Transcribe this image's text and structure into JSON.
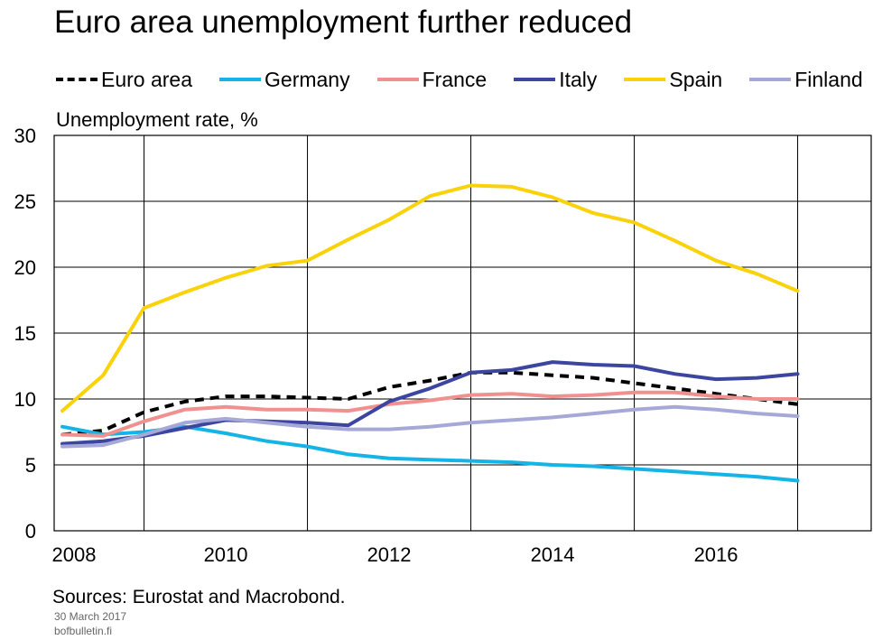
{
  "footer": {
    "sources": "Sources: Eurostat and Macrobond.",
    "date": "30 March 2017",
    "site": "bofbulletin.fi"
  },
  "chart_data": {
    "type": "line",
    "title": "Euro area unemployment further reduced",
    "ylabel": "Unemployment rate, %",
    "xlabel": "",
    "xlim": [
      2007.9,
      2017.9
    ],
    "ylim": [
      0,
      30
    ],
    "grid": true,
    "legend_position": "top",
    "x_ticks": [
      "2008",
      "2010",
      "2012",
      "2014",
      "2016"
    ],
    "y_ticks": [
      "0",
      "5",
      "10",
      "15",
      "20",
      "25",
      "30"
    ],
    "x": [
      2008.0,
      2008.5,
      2009.0,
      2009.5,
      2010.0,
      2010.5,
      2011.0,
      2011.5,
      2012.0,
      2012.5,
      2013.0,
      2013.5,
      2014.0,
      2014.5,
      2015.0,
      2015.5,
      2016.0,
      2016.5,
      2017.0
    ],
    "series": [
      {
        "name": "Euro area",
        "color": "#000000",
        "style": "dashed",
        "values": [
          7.3,
          7.6,
          9.0,
          9.8,
          10.2,
          10.2,
          10.1,
          10.0,
          10.9,
          11.4,
          12.0,
          12.0,
          11.8,
          11.6,
          11.2,
          10.8,
          10.4,
          10.0,
          9.6
        ]
      },
      {
        "name": "Germany",
        "color": "#14b4e6",
        "style": "solid",
        "values": [
          7.9,
          7.3,
          7.5,
          7.9,
          7.4,
          6.8,
          6.4,
          5.8,
          5.5,
          5.4,
          5.3,
          5.2,
          5.0,
          4.9,
          4.7,
          4.5,
          4.3,
          4.1,
          3.8
        ]
      },
      {
        "name": "France",
        "color": "#f0908f",
        "style": "solid",
        "values": [
          7.3,
          7.2,
          8.3,
          9.2,
          9.4,
          9.2,
          9.2,
          9.1,
          9.6,
          9.9,
          10.3,
          10.4,
          10.2,
          10.3,
          10.5,
          10.5,
          10.2,
          10.0,
          10.0
        ]
      },
      {
        "name": "Italy",
        "color": "#3c46a0",
        "style": "solid",
        "values": [
          6.6,
          6.8,
          7.2,
          7.8,
          8.4,
          8.3,
          8.2,
          8.0,
          9.8,
          10.8,
          12.0,
          12.2,
          12.8,
          12.6,
          12.5,
          11.9,
          11.5,
          11.6,
          11.9
        ]
      },
      {
        "name": "Spain",
        "color": "#fad20a",
        "style": "solid",
        "values": [
          9.1,
          11.8,
          16.9,
          18.1,
          19.2,
          20.1,
          20.5,
          22.1,
          23.6,
          25.4,
          26.2,
          26.1,
          25.3,
          24.1,
          23.4,
          22.0,
          20.5,
          19.5,
          18.2
        ]
      },
      {
        "name": "Finland",
        "color": "#a6a8d8",
        "style": "solid",
        "values": [
          6.4,
          6.5,
          7.3,
          8.2,
          8.5,
          8.2,
          7.9,
          7.7,
          7.7,
          7.9,
          8.2,
          8.4,
          8.6,
          8.9,
          9.2,
          9.4,
          9.2,
          8.9,
          8.7
        ]
      }
    ]
  }
}
